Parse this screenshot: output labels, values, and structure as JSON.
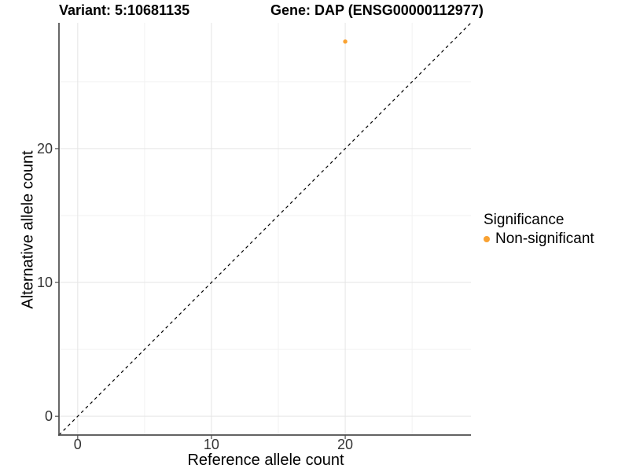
{
  "chart_data": {
    "type": "scatter",
    "titles": {
      "left": "Variant: 5:10681135",
      "right": "Gene: DAP (ENSG00000112977)"
    },
    "xlabel": "Reference allele count",
    "ylabel": "Alternative allele count",
    "xlim": [
      -1.4,
      29.4
    ],
    "ylim": [
      -1.4,
      29.4
    ],
    "xticks": [
      0,
      10,
      20
    ],
    "yticks": [
      0,
      10,
      20
    ],
    "xticks_minor": [
      5,
      15,
      25
    ],
    "yticks_minor": [
      5,
      15,
      25
    ],
    "grid": "major+minor",
    "identity_line": {
      "slope": 1,
      "intercept": 0,
      "style": "dashed",
      "color": "#000000"
    },
    "series": [
      {
        "name": "Non-significant",
        "color": "#F9A232",
        "points": [
          {
            "x": 20,
            "y": 28
          }
        ]
      }
    ],
    "legend": {
      "title": "Significance",
      "position": "right",
      "items": [
        {
          "label": "Non-significant",
          "color": "#F9A232"
        }
      ]
    }
  },
  "colors": {
    "background": "#FFFFFF",
    "point_orange": "#F9A232",
    "grid_major": "#E5E5E5",
    "grid_minor": "#F2F2F2",
    "axis_line": "#4D4D4D",
    "tick_label": "#333333",
    "identity_line": "#000000"
  }
}
